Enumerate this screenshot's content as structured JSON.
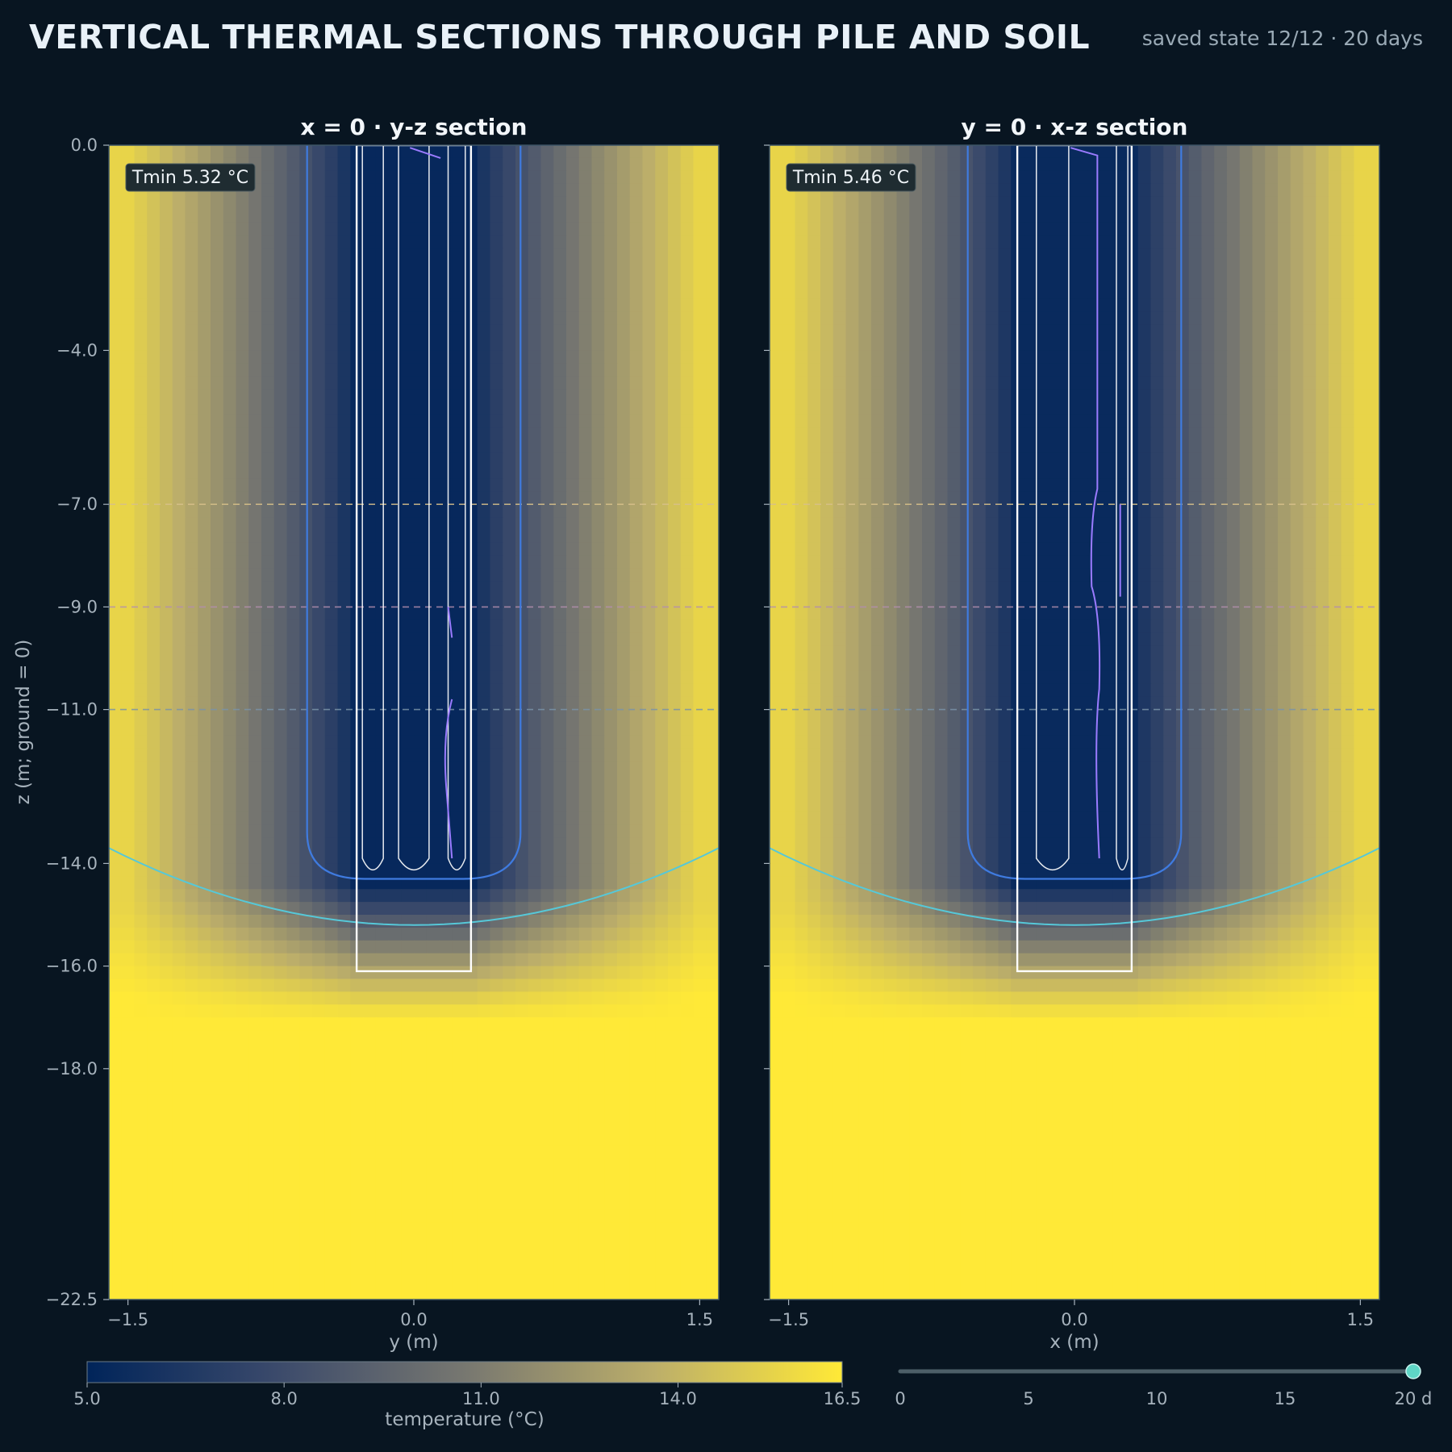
{
  "header": {
    "title": "VERTICAL THERMAL SECTIONS THROUGH PILE AND SOIL",
    "subtitle": "saved state 12/12 · 20 days"
  },
  "chart_data": [
    {
      "type": "heatmap",
      "title": "x = 0 · y-z section",
      "xlabel": "y (m)",
      "ylabel": "z (m; ground = 0)",
      "xlim": [
        -1.6,
        1.6
      ],
      "ylim": [
        -22.5,
        0.0
      ],
      "xticks": [
        "−1.5",
        "0.0",
        "1.5"
      ],
      "xtick_values": [
        -1.5,
        0.0,
        1.5
      ],
      "yticks": [
        "0.0",
        "−4.0",
        "−7.0",
        "−9.0",
        "−11.0",
        "−14.0",
        "−16.0",
        "−18.0",
        "−22.5"
      ],
      "ytick_values": [
        0.0,
        -4.0,
        -7.0,
        -9.0,
        -11.0,
        -14.0,
        -16.0,
        -18.0,
        -22.5
      ],
      "annotation": "Tmin 5.32 °C",
      "tmin": 5.32,
      "pile": {
        "xmin": -0.3,
        "xmax": 0.3,
        "zmin": -16.1
      },
      "reference_depths": [
        -7.0,
        -9.0,
        -11.0
      ],
      "contours": [
        {
          "level": 7.0,
          "half_width": 0.56,
          "bottom": -14.3
        },
        {
          "level": 14.5,
          "center_depth": -15.2,
          "edge_depth": -13.7
        }
      ]
    },
    {
      "type": "heatmap",
      "title": "y = 0 · x-z section",
      "xlabel": "x (m)",
      "ylabel": "",
      "xlim": [
        -1.6,
        1.6
      ],
      "ylim": [
        -22.5,
        0.0
      ],
      "xticks": [
        "−1.5",
        "0.0",
        "1.5"
      ],
      "xtick_values": [
        -1.5,
        0.0,
        1.5
      ],
      "yticks": [
        "0.0",
        "−4.0",
        "−7.0",
        "−9.0",
        "−11.0",
        "−14.0",
        "−16.0",
        "−18.0",
        "−22.5"
      ],
      "ytick_values": [
        0.0,
        -4.0,
        -7.0,
        -9.0,
        -11.0,
        -14.0,
        -16.0,
        -18.0,
        -22.5
      ],
      "annotation": "Tmin 5.46 °C",
      "tmin": 5.46,
      "pile": {
        "xmin": -0.3,
        "xmax": 0.3,
        "zmin": -16.1
      },
      "reference_depths": [
        -7.0,
        -9.0,
        -11.0
      ],
      "contours": [
        {
          "level": 7.0,
          "half_width": 0.56,
          "bottom": -14.3
        },
        {
          "level": 14.5,
          "center_depth": -15.2,
          "edge_depth": -13.7
        }
      ]
    }
  ],
  "colorbar": {
    "label": "temperature (°C)",
    "min": 5.0,
    "max": 16.5,
    "ticks": [
      "5.0",
      "8.0",
      "11.0",
      "14.0",
      "16.5"
    ],
    "tick_values": [
      5.0,
      8.0,
      11.0,
      14.0,
      16.5
    ],
    "colors": [
      "#00245a",
      "#3b4a6b",
      "#777770",
      "#bcae6a",
      "#ffe937"
    ]
  },
  "time_slider": {
    "min": 0,
    "max": 20,
    "value": 20,
    "ticks": [
      "0",
      "5",
      "10",
      "15",
      "20 d"
    ],
    "tick_values": [
      0,
      5,
      10,
      15,
      20
    ]
  },
  "colors": {
    "background": "#081521",
    "contour_cold": "#3f7be0",
    "contour_warm": "#56c8d8",
    "contour_pipe": "#9a7bff",
    "ref_line_1": "#d7c08a",
    "ref_line_2": "#b48fae",
    "ref_line_3": "#7a93a8",
    "slider_knob": "#5fd6c6"
  }
}
